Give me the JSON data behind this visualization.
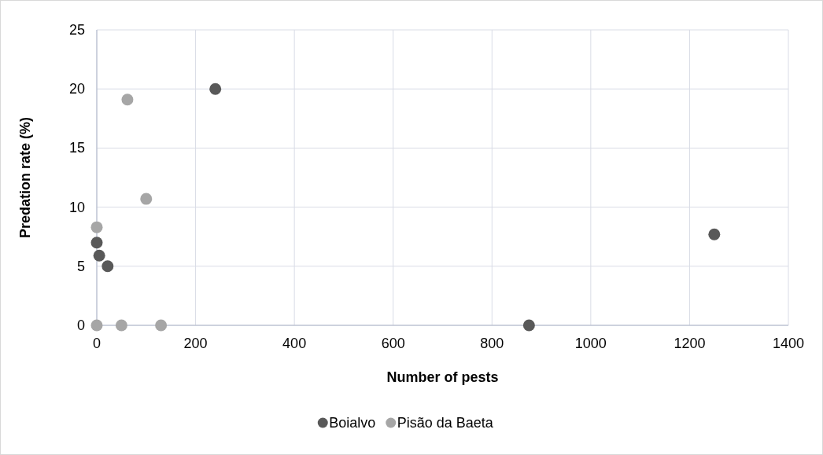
{
  "chart_data": {
    "type": "scatter",
    "xlabel": "Number of pests",
    "ylabel": "Predation rate (%)",
    "xlim": [
      0,
      1400
    ],
    "xticks": [
      0,
      200,
      400,
      600,
      800,
      1000,
      1200,
      1400
    ],
    "ylim": [
      0,
      25
    ],
    "yticks": [
      0,
      5,
      10,
      15,
      20,
      25
    ],
    "grid": true,
    "legend": "bottom",
    "marker": "circle",
    "series": [
      {
        "name": "Boialvo",
        "color": "#595959",
        "x": [
          240,
          0,
          5,
          22,
          1250,
          875
        ],
        "values": [
          20,
          7,
          5.9,
          5,
          7.7,
          0
        ]
      },
      {
        "name": "Pisão da Baeta",
        "color": "#a6a6a6",
        "x": [
          62,
          100,
          0,
          0,
          50,
          130
        ],
        "values": [
          19.1,
          10.7,
          8.3,
          0,
          0,
          0
        ]
      }
    ]
  }
}
